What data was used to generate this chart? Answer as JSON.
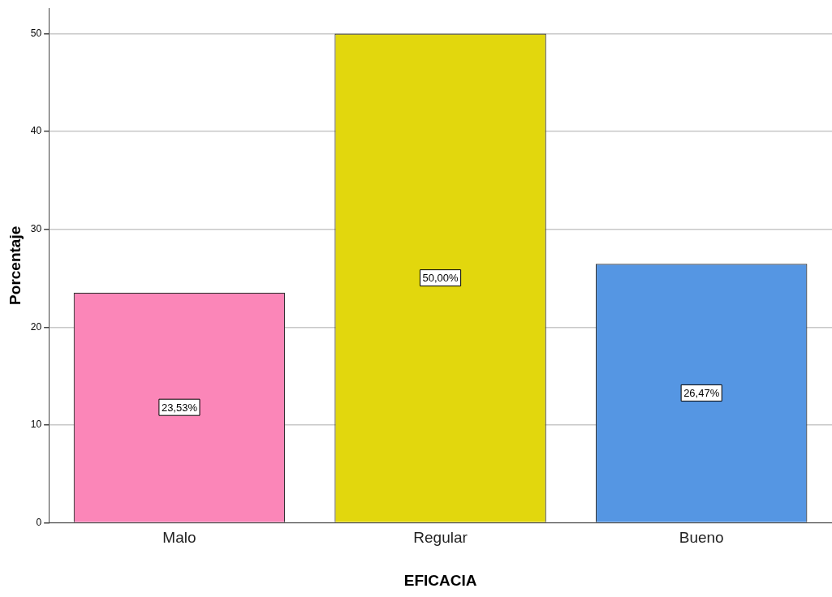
{
  "chart_data": {
    "type": "bar",
    "xlabel": "EFICACIA",
    "ylabel": "Porcentaje",
    "categories": [
      "Malo",
      "Regular",
      "Bueno"
    ],
    "values": [
      23.53,
      50.0,
      26.47
    ],
    "colors": [
      "#fb86b8",
      "#e2d70d",
      "#5596e3"
    ],
    "value_labels": [
      "23,53%",
      "50,00%",
      "26,47%"
    ],
    "ylim": [
      0,
      52.6
    ],
    "yticks": [
      0,
      10,
      20,
      30,
      40,
      50
    ],
    "grid": "y",
    "legend": false
  }
}
